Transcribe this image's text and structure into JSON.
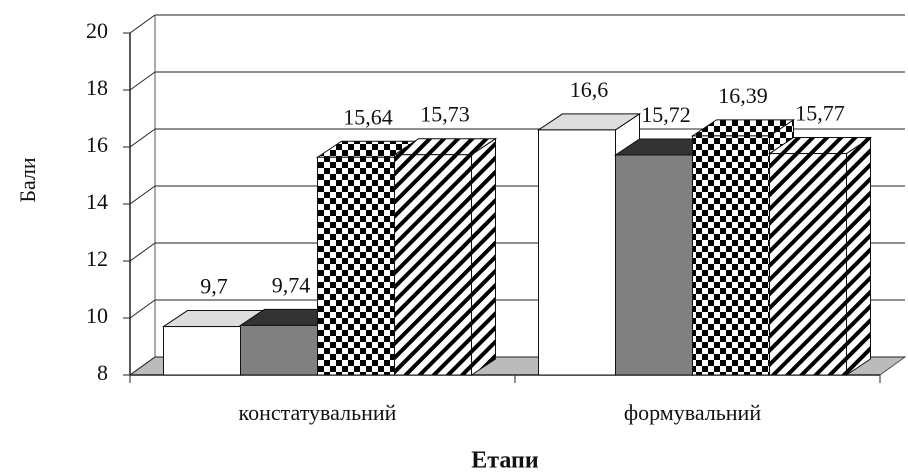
{
  "chart_data": {
    "type": "bar3d",
    "categories": [
      "констатувальний",
      "формувальний"
    ],
    "y_label": "Бали",
    "x_label": "Етапи",
    "ylim": [
      8,
      20
    ],
    "yticks": [
      8,
      10,
      12,
      14,
      16,
      18,
      20
    ],
    "grid": true,
    "series": [
      {
        "color": "#ffffff",
        "pattern": "solid",
        "values": [
          9.7,
          16.6
        ],
        "value_labels": [
          "9,7",
          "16,6"
        ]
      },
      {
        "color": "#808080",
        "pattern": "solid",
        "values": [
          9.74,
          15.72
        ],
        "value_labels": [
          "9,74",
          "15,72"
        ]
      },
      {
        "color": "#000000",
        "pattern": "checker",
        "values": [
          15.64,
          16.39
        ],
        "value_labels": [
          "15,64",
          "16,39"
        ]
      },
      {
        "color": "#000000",
        "pattern": "hatch",
        "values": [
          15.73,
          15.77
        ],
        "value_labels": [
          "15,73",
          "15,77"
        ]
      }
    ]
  }
}
